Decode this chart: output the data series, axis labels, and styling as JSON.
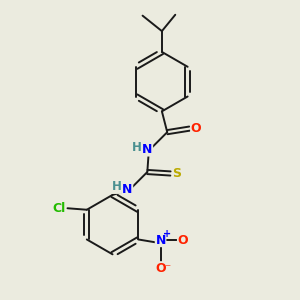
{
  "background_color": "#ebebdf",
  "bond_color": "#1a1a1a",
  "atom_colors": {
    "N": "#0000ff",
    "O": "#ff2200",
    "S": "#bbaa00",
    "Cl": "#22bb00",
    "H": "#4a9090",
    "C": "#1a1a1a"
  },
  "figsize": [
    3.0,
    3.0
  ],
  "dpi": 100
}
